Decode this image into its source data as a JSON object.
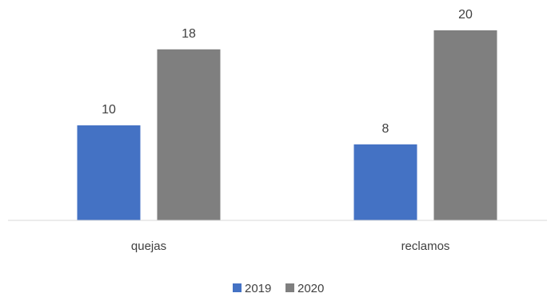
{
  "chart_data": {
    "type": "bar",
    "categories": [
      "quejas",
      "reclamos"
    ],
    "series": [
      {
        "name": "2019",
        "values": [
          10,
          8
        ]
      },
      {
        "name": "2020",
        "values": [
          18,
          20
        ]
      }
    ],
    "title": "",
    "xlabel": "",
    "ylabel": "",
    "ylim": [
      0,
      22
    ],
    "grid": false,
    "legend_position": "bottom-center",
    "colors": [
      "#4472c4",
      "#7f7f7f"
    ],
    "axis_color": "#d9d9d9",
    "text_color": "#404040"
  }
}
